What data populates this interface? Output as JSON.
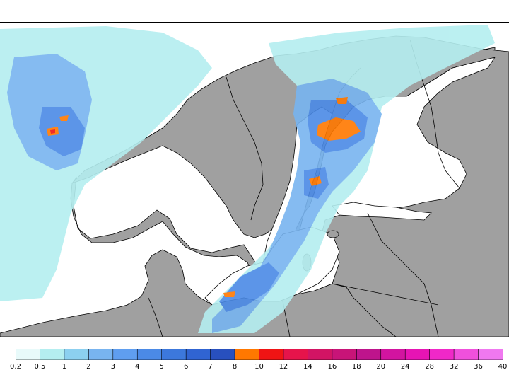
{
  "colorbar": {
    "colors": [
      "#e8fafa",
      "#b4eef0",
      "#8cd0f0",
      "#78b4f0",
      "#5f9ef0",
      "#4b8ae6",
      "#3c78dc",
      "#3064d2",
      "#2850be",
      "#ff7800",
      "#f01414",
      "#e6144b",
      "#d21464",
      "#c81478",
      "#be148c",
      "#d214a0",
      "#e614b4",
      "#f028c8",
      "#f050dc",
      "#f078f0"
    ],
    "labels": [
      "0.2",
      "0.5",
      "1",
      "2",
      "3",
      "4",
      "5",
      "6",
      "7",
      "8",
      "10",
      "12",
      "14",
      "16",
      "18",
      "20",
      "24",
      "28",
      "32",
      "36",
      "40"
    ]
  },
  "map": {
    "land_color": "#a0a0a0",
    "sea_color": "#ffffff",
    "border_color": "#000000"
  }
}
